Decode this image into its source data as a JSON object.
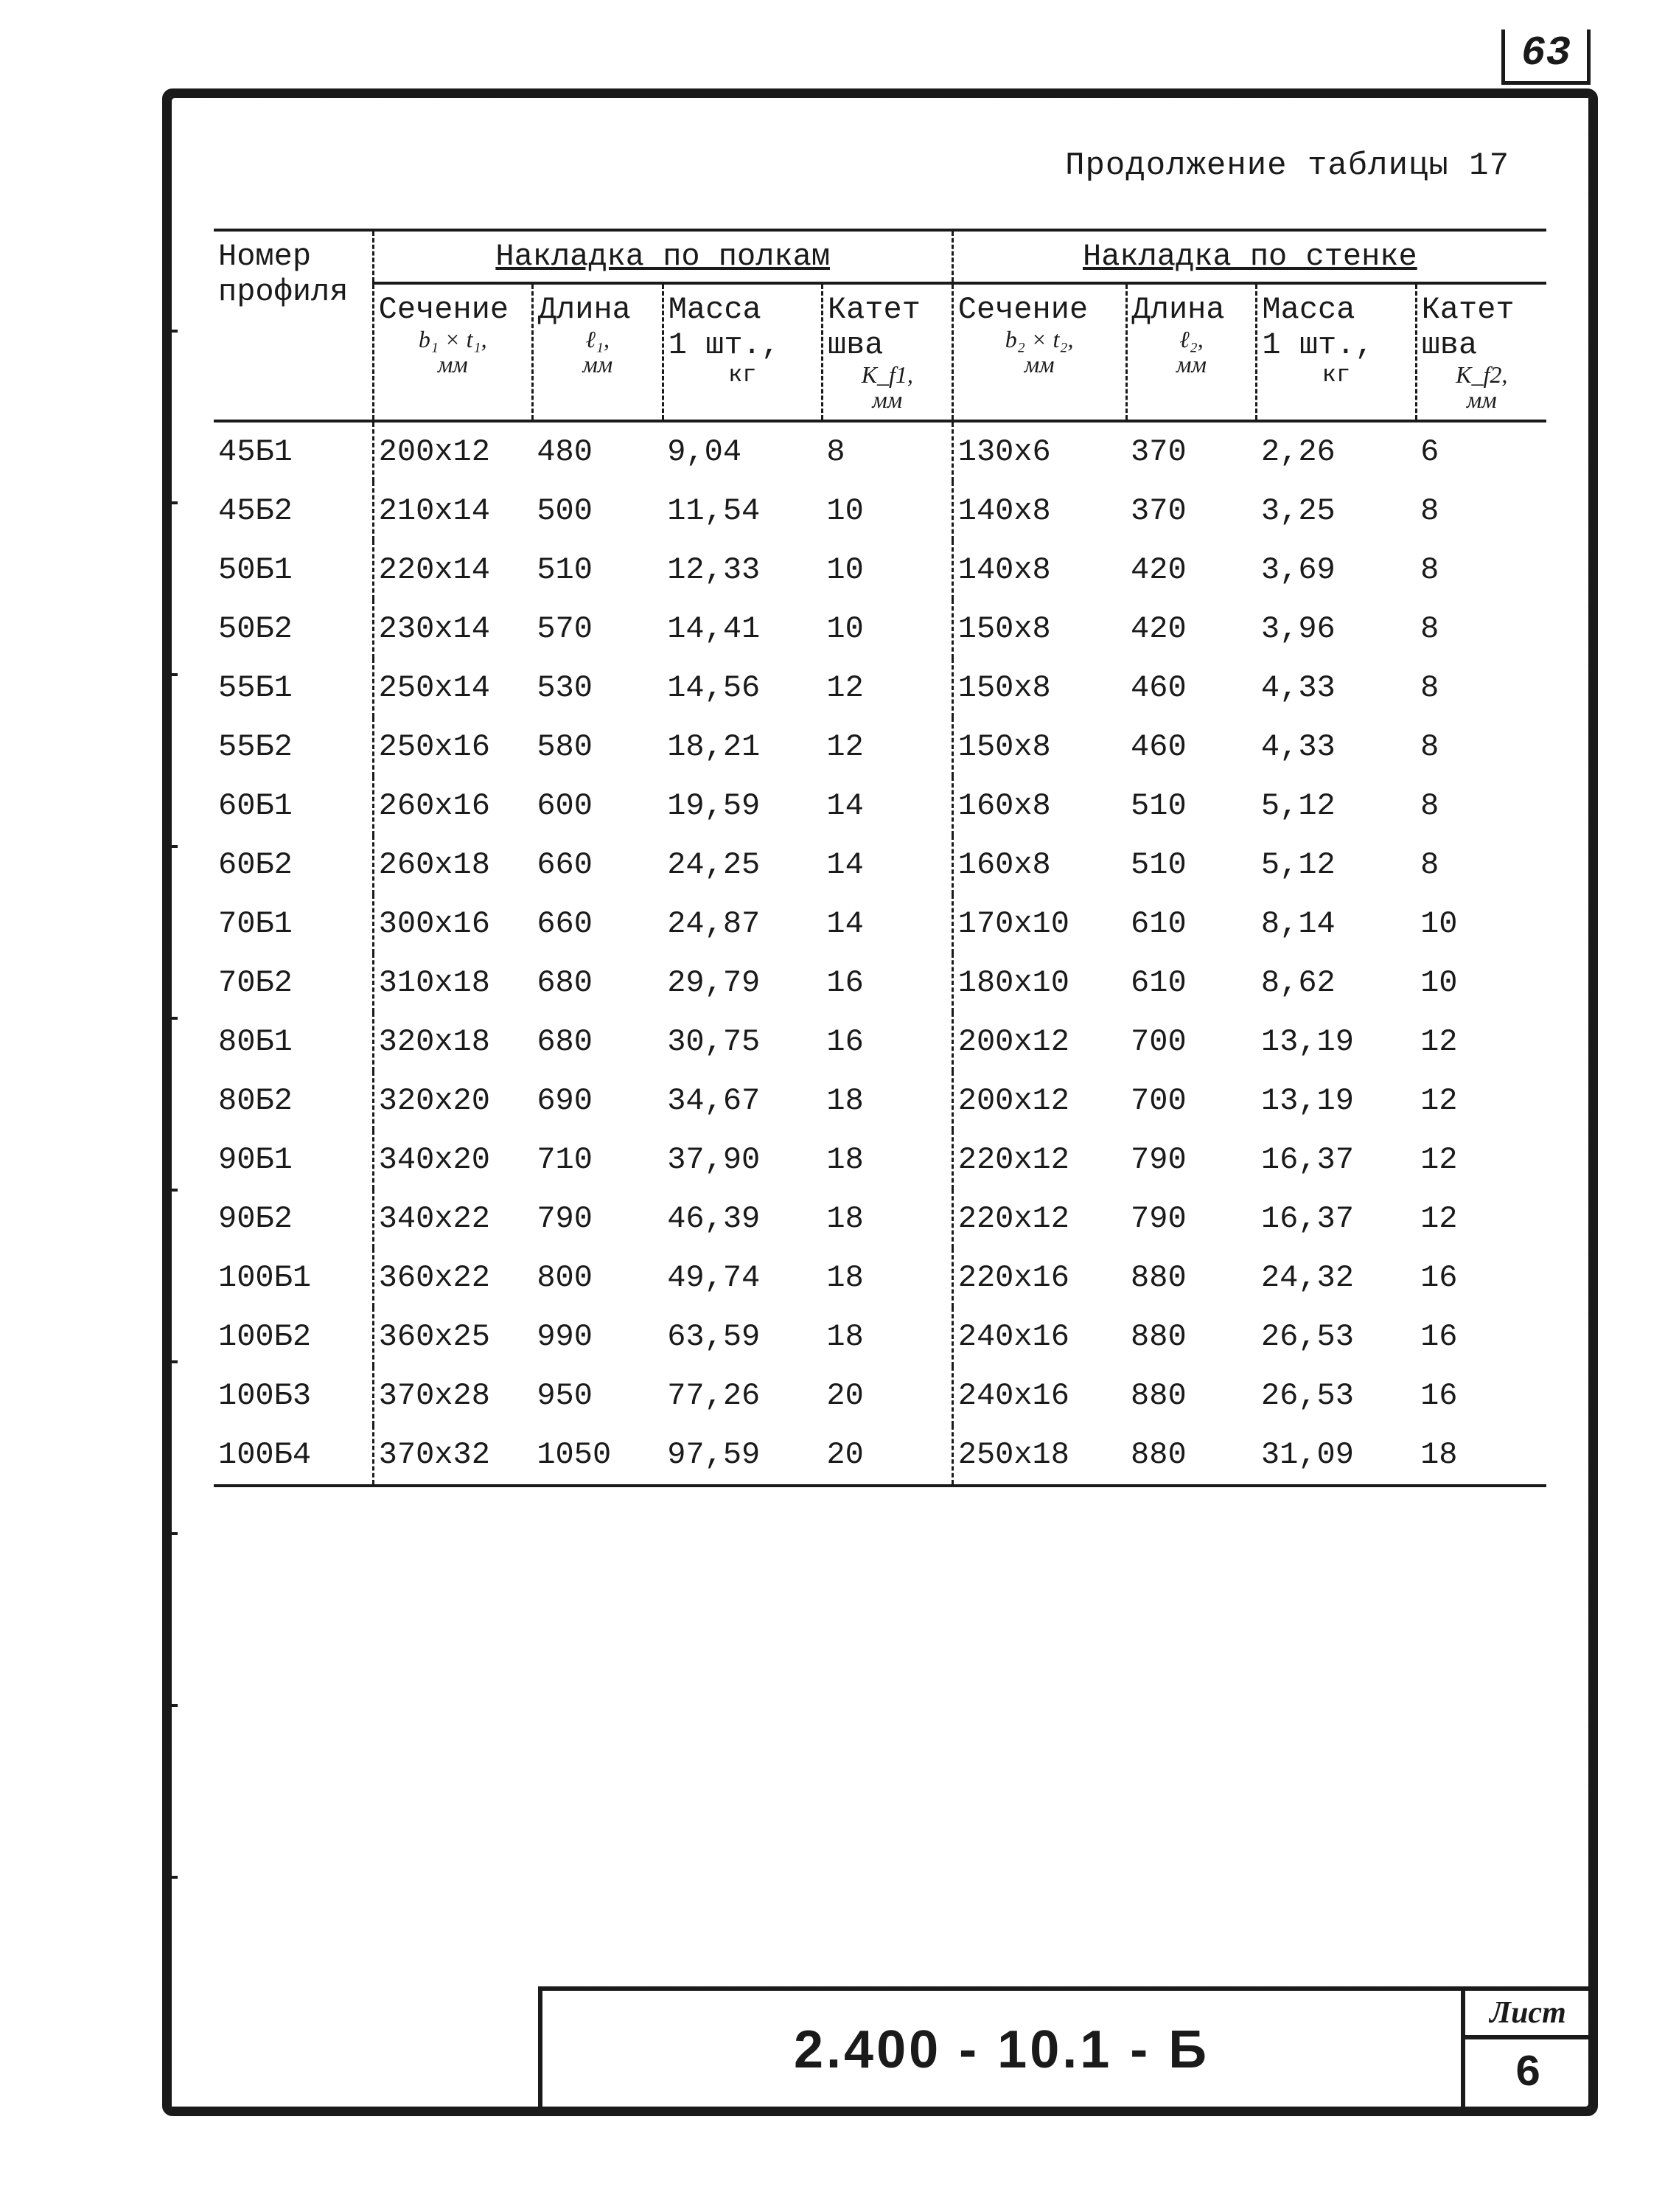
{
  "page_number_top": "63",
  "caption": "Продолжение таблицы 17",
  "doc_code": "2.400 - 10.1 - Б",
  "sheet_label": "Лист",
  "sheet_number": "6",
  "head": {
    "profile": "Номер\nпрофиля",
    "group1": "Накладка по полкам",
    "group2": "Накладка по стенке",
    "c1": "Сечение",
    "c1s": "b₁ × t₁,\nмм",
    "c2": "Длина",
    "c2s": "ℓ₁,\nмм",
    "c3": "Масса\n1 шт.,",
    "c3s": "кг",
    "c4": "Катет\nшва",
    "c4s": "K_f1,\nмм",
    "c5": "Сечение",
    "c5s": "b₂ × t₂,\nмм",
    "c6": "Длина",
    "c6s": "ℓ₂,\nмм",
    "c7": "Масса\n1 шт.,",
    "c7s": "кг",
    "c8": "Катет\nшва",
    "c8s": "K_f2,\nмм"
  },
  "rows": [
    [
      "45Б1",
      "200х12",
      "480",
      "9,04",
      "8",
      "130х6",
      "370",
      "2,26",
      "6"
    ],
    [
      "45Б2",
      "210х14",
      "500",
      "11,54",
      "10",
      "140х8",
      "370",
      "3,25",
      "8"
    ],
    [
      "50Б1",
      "220х14",
      "510",
      "12,33",
      "10",
      "140х8",
      "420",
      "3,69",
      "8"
    ],
    [
      "50Б2",
      "230х14",
      "570",
      "14,41",
      "10",
      "150х8",
      "420",
      "3,96",
      "8"
    ],
    [
      "55Б1",
      "250х14",
      "530",
      "14,56",
      "12",
      "150х8",
      "460",
      "4,33",
      "8"
    ],
    [
      "55Б2",
      "250х16",
      "580",
      "18,21",
      "12",
      "150х8",
      "460",
      "4,33",
      "8"
    ],
    [
      "60Б1",
      "260х16",
      "600",
      "19,59",
      "14",
      "160х8",
      "510",
      "5,12",
      "8"
    ],
    [
      "60Б2",
      "260х18",
      "660",
      "24,25",
      "14",
      "160х8",
      "510",
      "5,12",
      "8"
    ],
    [
      "70Б1",
      "300х16",
      "660",
      "24,87",
      "14",
      "170х10",
      "610",
      "8,14",
      "10"
    ],
    [
      "70Б2",
      "310х18",
      "680",
      "29,79",
      "16",
      "180х10",
      "610",
      "8,62",
      "10"
    ],
    [
      "80Б1",
      "320х18",
      "680",
      "30,75",
      "16",
      "200х12",
      "700",
      "13,19",
      "12"
    ],
    [
      "80Б2",
      "320х20",
      "690",
      "34,67",
      "18",
      "200х12",
      "700",
      "13,19",
      "12"
    ],
    [
      "90Б1",
      "340х20",
      "710",
      "37,90",
      "18",
      "220х12",
      "790",
      "16,37",
      "12"
    ],
    [
      "90Б2",
      "340х22",
      "790",
      "46,39",
      "18",
      "220х12",
      "790",
      "16,37",
      "12"
    ],
    [
      "100Б1",
      "360х22",
      "800",
      "49,74",
      "18",
      "220х16",
      "880",
      "24,32",
      "16"
    ],
    [
      "100Б2",
      "360х25",
      "990",
      "63,59",
      "18",
      "240х16",
      "880",
      "26,53",
      "16"
    ],
    [
      "100Б3",
      "370х28",
      "950",
      "77,26",
      "20",
      "240х16",
      "880",
      "26,53",
      "16"
    ],
    [
      "100Б4",
      "370х32",
      "1050",
      "97,59",
      "20",
      "250х18",
      "880",
      "31,09",
      "18"
    ]
  ],
  "colors": {
    "ink": "#1a1a1a",
    "paper": "#ffffff"
  }
}
